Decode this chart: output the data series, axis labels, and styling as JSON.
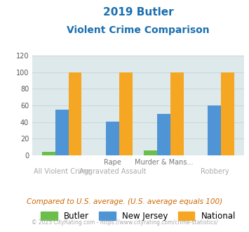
{
  "title_line1": "2019 Butler",
  "title_line2": "Violent Crime Comparison",
  "x_labels_top": [
    "",
    "Rape",
    "Murder & Mans...",
    ""
  ],
  "x_labels_bottom": [
    "All Violent Crime",
    "Aggravated Assault",
    "",
    "Robbery"
  ],
  "butler": [
    4,
    0,
    6,
    0
  ],
  "new_jersey": [
    55,
    41,
    50,
    60
  ],
  "national": [
    100,
    100,
    100,
    100
  ],
  "butler_color": "#6abf4b",
  "nj_color": "#4f94d4",
  "national_color": "#f5a623",
  "ylim": [
    0,
    120
  ],
  "yticks": [
    0,
    20,
    40,
    60,
    80,
    100,
    120
  ],
  "grid_color": "#c8d8d8",
  "bg_color": "#dde9ea",
  "legend_labels": [
    "Butler",
    "New Jersey",
    "National"
  ],
  "footer_text": "Compared to U.S. average. (U.S. average equals 100)",
  "copyright_text": "© 2025 CityRating.com - https://www.cityrating.com/crime-statistics/",
  "title_color": "#1a6faf",
  "footer_color": "#cc6600",
  "copyright_color": "#aaaaaa",
  "xlabel_top_color": "#777777",
  "xlabel_bot_color": "#aaaaaa"
}
